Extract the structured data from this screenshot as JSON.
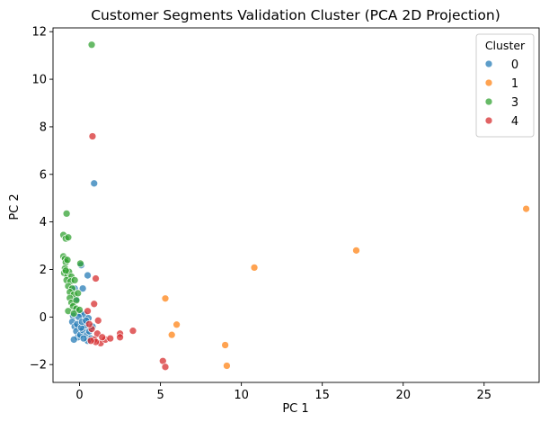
{
  "chart_data": {
    "type": "scatter",
    "title": "Customer Segments Validation Cluster (PCA 2D Projection)",
    "xlabel": "PC 1",
    "ylabel": "PC 2",
    "xlim": [
      -1.64,
      28.4
    ],
    "ylim": [
      -2.75,
      12.16
    ],
    "xticks": [
      0,
      5,
      10,
      15,
      20,
      25
    ],
    "yticks": [
      -2,
      0,
      2,
      4,
      6,
      8,
      10,
      12
    ],
    "grid": false,
    "legend": {
      "title": "Cluster",
      "placement": "top-right"
    },
    "series": [
      {
        "name": "0",
        "color": "#1f77b4",
        "points": [
          [
            0.9,
            5.62
          ],
          [
            0.5,
            1.75
          ],
          [
            0.1,
            2.18
          ],
          [
            -0.3,
            1.2
          ],
          [
            0.2,
            1.2
          ],
          [
            -0.2,
            0.75
          ],
          [
            -0.25,
            0.3
          ],
          [
            0.05,
            0.15
          ],
          [
            0.3,
            0.1
          ],
          [
            0.55,
            -0.05
          ],
          [
            -0.4,
            0.05
          ],
          [
            -0.45,
            -0.2
          ],
          [
            -0.3,
            -0.4
          ],
          [
            -0.2,
            -0.6
          ],
          [
            -0.1,
            -0.85
          ],
          [
            0.05,
            -0.75
          ],
          [
            0.2,
            -0.55
          ],
          [
            0.35,
            -0.35
          ],
          [
            0.45,
            -0.75
          ],
          [
            0.6,
            -0.6
          ],
          [
            0.7,
            -0.9
          ],
          [
            0.5,
            -1.0
          ],
          [
            -0.35,
            -0.95
          ],
          [
            -0.15,
            -0.3
          ],
          [
            0.1,
            -0.45
          ],
          [
            0.25,
            -0.9
          ],
          [
            0.8,
            -0.4
          ],
          [
            -0.05,
            0.0
          ],
          [
            0.15,
            -0.2
          ],
          [
            0.4,
            -0.15
          ]
        ]
      },
      {
        "name": "1",
        "color": "#ff7f0e",
        "points": [
          [
            27.6,
            4.55
          ],
          [
            17.1,
            2.8
          ],
          [
            10.8,
            2.08
          ],
          [
            5.3,
            0.78
          ],
          [
            6.0,
            -0.32
          ],
          [
            5.7,
            -0.75
          ],
          [
            9.0,
            -1.18
          ],
          [
            9.1,
            -2.05
          ]
        ]
      },
      {
        "name": "3",
        "color": "#2ca02c",
        "points": [
          [
            0.75,
            11.45
          ],
          [
            -0.8,
            4.35
          ],
          [
            -1.0,
            3.45
          ],
          [
            -0.85,
            3.3
          ],
          [
            -0.7,
            3.35
          ],
          [
            -1.0,
            2.55
          ],
          [
            -0.9,
            2.45
          ],
          [
            -0.85,
            2.3
          ],
          [
            -0.75,
            2.4
          ],
          [
            0.05,
            2.25
          ],
          [
            -0.9,
            2.05
          ],
          [
            -0.95,
            1.85
          ],
          [
            -0.75,
            1.75
          ],
          [
            -0.65,
            1.9
          ],
          [
            -0.5,
            1.7
          ],
          [
            -0.8,
            1.55
          ],
          [
            -0.55,
            1.5
          ],
          [
            -0.3,
            1.55
          ],
          [
            -0.7,
            1.3
          ],
          [
            -0.45,
            1.2
          ],
          [
            -0.6,
            1.05
          ],
          [
            -0.35,
            0.95
          ],
          [
            -0.6,
            0.8
          ],
          [
            -0.5,
            0.6
          ],
          [
            -0.2,
            0.7
          ],
          [
            -0.4,
            0.45
          ],
          [
            -0.2,
            0.35
          ],
          [
            -0.7,
            0.25
          ],
          [
            -0.35,
            0.15
          ],
          [
            0.0,
            0.3
          ],
          [
            -0.1,
            1.0
          ],
          [
            -0.85,
            1.95
          ]
        ]
      },
      {
        "name": "4",
        "color": "#d62728",
        "points": [
          [
            0.8,
            7.6
          ],
          [
            1.0,
            1.62
          ],
          [
            0.9,
            0.55
          ],
          [
            1.15,
            -0.15
          ],
          [
            0.5,
            0.25
          ],
          [
            0.75,
            -0.5
          ],
          [
            1.1,
            -0.7
          ],
          [
            0.9,
            -0.95
          ],
          [
            1.3,
            -1.1
          ],
          [
            1.6,
            -0.95
          ],
          [
            1.9,
            -0.9
          ],
          [
            2.5,
            -0.7
          ],
          [
            2.5,
            -0.85
          ],
          [
            3.3,
            -0.58
          ],
          [
            5.15,
            -1.85
          ],
          [
            5.3,
            -2.1
          ],
          [
            0.6,
            -0.3
          ],
          [
            1.4,
            -0.85
          ],
          [
            1.0,
            -1.05
          ],
          [
            0.7,
            -1.0
          ]
        ]
      }
    ]
  }
}
